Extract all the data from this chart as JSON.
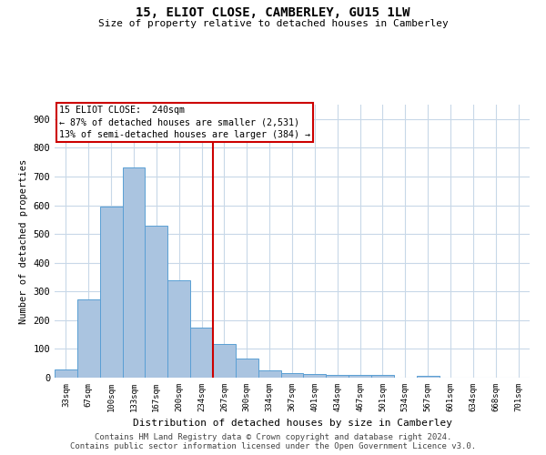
{
  "title": "15, ELIOT CLOSE, CAMBERLEY, GU15 1LW",
  "subtitle": "Size of property relative to detached houses in Camberley",
  "xlabel": "Distribution of detached houses by size in Camberley",
  "ylabel": "Number of detached properties",
  "footnote1": "Contains HM Land Registry data © Crown copyright and database right 2024.",
  "footnote2": "Contains public sector information licensed under the Open Government Licence v3.0.",
  "bar_labels": [
    "33sqm",
    "67sqm",
    "100sqm",
    "133sqm",
    "167sqm",
    "200sqm",
    "234sqm",
    "267sqm",
    "300sqm",
    "334sqm",
    "367sqm",
    "401sqm",
    "434sqm",
    "467sqm",
    "501sqm",
    "534sqm",
    "567sqm",
    "601sqm",
    "634sqm",
    "668sqm",
    "701sqm"
  ],
  "bar_values": [
    27,
    272,
    594,
    730,
    530,
    340,
    175,
    118,
    67,
    25,
    15,
    14,
    10,
    9,
    8,
    0,
    7,
    0,
    0,
    0,
    0
  ],
  "bar_color": "#aac4e0",
  "bar_edge_color": "#5a9fd4",
  "property_line_bar_index": 6,
  "property_label": "15 ELIOT CLOSE:  240sqm",
  "annotation_line1": "← 87% of detached houses are smaller (2,531)",
  "annotation_line2": "13% of semi-detached houses are larger (384) →",
  "annotation_box_color": "#cc0000",
  "property_line_color": "#cc0000",
  "ylim": [
    0,
    950
  ],
  "yticks": [
    0,
    100,
    200,
    300,
    400,
    500,
    600,
    700,
    800,
    900
  ],
  "grid_color": "#c8d8e8",
  "background_color": "#ffffff",
  "bar_width": 1.0
}
